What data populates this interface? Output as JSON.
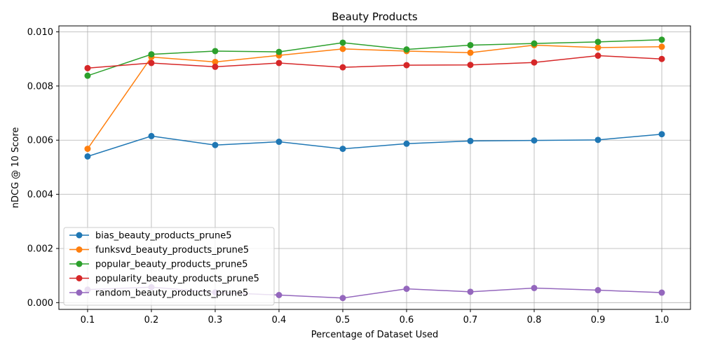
{
  "chart_data": {
    "type": "line",
    "title": "Beauty Products",
    "xlabel": "Percentage of Dataset Used",
    "ylabel": "nDCG @ 10 Score",
    "x": [
      0.1,
      0.2,
      0.3,
      0.4,
      0.5,
      0.6,
      0.7,
      0.8,
      0.9,
      1.0
    ],
    "x_tick_labels": [
      "0.1",
      "0.2",
      "0.3",
      "0.4",
      "0.5",
      "0.6",
      "0.7",
      "0.8",
      "0.9",
      "1.0"
    ],
    "ylim": [
      -0.00025,
      0.01022
    ],
    "y_ticks": [
      0.0,
      0.002,
      0.004,
      0.006,
      0.008,
      0.01
    ],
    "y_tick_labels": [
      "0.000",
      "0.002",
      "0.004",
      "0.006",
      "0.008",
      "0.010"
    ],
    "grid": true,
    "legend_position": "lower-left",
    "series": [
      {
        "name": "bias_beauty_products_prune5",
        "color": "#1f77b4",
        "values": [
          0.0054,
          0.00615,
          0.00582,
          0.00594,
          0.00568,
          0.00587,
          0.00597,
          0.00599,
          0.00601,
          0.00622
        ]
      },
      {
        "name": "funksvd_beauty_products_prune5",
        "color": "#ff7f0e",
        "values": [
          0.00568,
          0.00907,
          0.00889,
          0.00913,
          0.00937,
          0.00929,
          0.00923,
          0.00951,
          0.00942,
          0.00945
        ]
      },
      {
        "name": "popular_beauty_products_prune5",
        "color": "#2ca02c",
        "values": [
          0.00838,
          0.00917,
          0.00929,
          0.00926,
          0.0096,
          0.00935,
          0.00951,
          0.00957,
          0.00963,
          0.00971
        ]
      },
      {
        "name": "popularity_beauty_products_prune5",
        "color": "#d62728",
        "values": [
          0.00866,
          0.00885,
          0.00871,
          0.00885,
          0.00869,
          0.00877,
          0.00878,
          0.00887,
          0.00912,
          0.009
        ]
      },
      {
        "name": "random_beauty_products_prune5",
        "color": "#9467bd",
        "values": [
          0.00048,
          0.00057,
          0.00038,
          0.00028,
          0.00017,
          0.00051,
          0.0004,
          0.00054,
          0.00046,
          0.00037
        ]
      }
    ]
  }
}
